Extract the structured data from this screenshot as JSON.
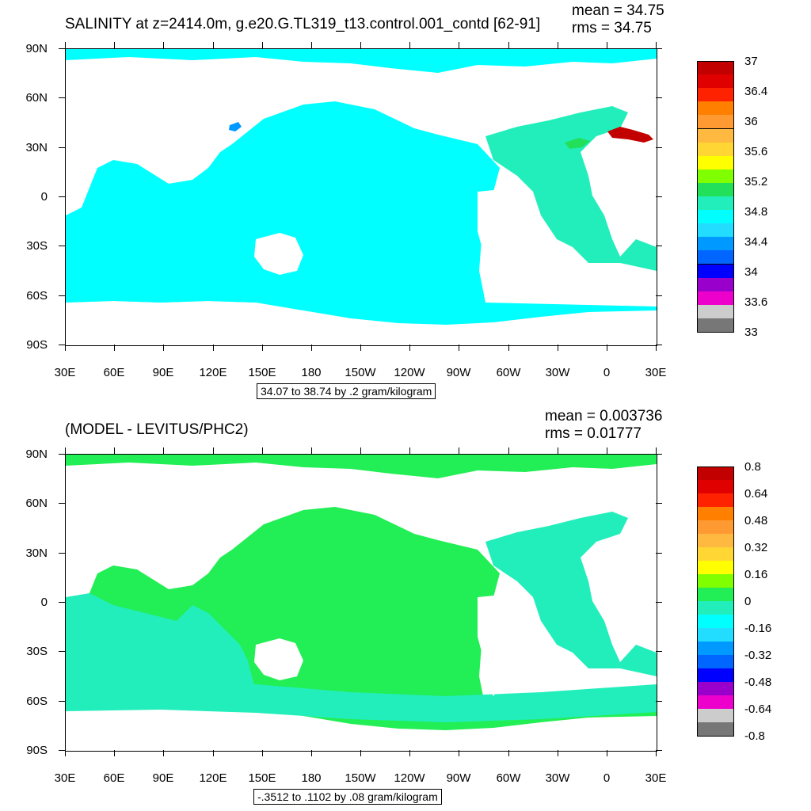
{
  "top": {
    "title": "SALINITY at z=2414.0m, g.e20.G.TL319_t13.control.001_contd [62-91]",
    "mean_text": "mean = 34.75",
    "rms_text": "rms = 34.75",
    "info_text": "34.07 to 38.74 by .2 gram/kilogram",
    "ocean_color": "#00ffff",
    "atlantic_color": "#22eebb",
    "legend": {
      "colors": [
        "#c30000",
        "#e00000",
        "#ff2200",
        "#ff7f00",
        "#ff9a33",
        "#ffb940",
        "#ffd633",
        "#ffff00",
        "#7fff00",
        "#22e05a",
        "#22eebb",
        "#00ffff",
        "#22ddff",
        "#0099ff",
        "#0066ff",
        "#0000ff",
        "#9900cc",
        "#ee00cc",
        "#cccccc",
        "#777777"
      ],
      "labels": [
        "37",
        "36.4",
        "36",
        "35.6",
        "35.2",
        "34.8",
        "34.4",
        "34",
        "33.6",
        "33"
      ]
    }
  },
  "bottom": {
    "title": "(MODEL - LEVITUS/PHC2)",
    "mean_text": "mean = 0.003736",
    "rms_text": "rms = 0.01777",
    "info_text": "-.3512 to .1102 by .08 gram/kilogram",
    "ocean_color": "#22ee55",
    "secondary_color": "#22eebb",
    "legend": {
      "colors": [
        "#c30000",
        "#e00000",
        "#ff2200",
        "#ff7f00",
        "#ff9a33",
        "#ffb940",
        "#ffd633",
        "#ffff00",
        "#7fff00",
        "#22ee55",
        "#22eebb",
        "#00ffff",
        "#22ddff",
        "#0099ff",
        "#0066ff",
        "#0000ff",
        "#9900cc",
        "#ee00cc",
        "#cccccc",
        "#777777"
      ],
      "labels": [
        "0.8",
        "0.64",
        "0.48",
        "0.32",
        "0.16",
        "0",
        "-0.16",
        "-0.32",
        "-0.48",
        "-0.64",
        "-0.8"
      ]
    }
  },
  "axes": {
    "lat_labels": [
      "90N",
      "60N",
      "30N",
      "0",
      "30S",
      "60S",
      "90S"
    ],
    "lon_labels": [
      "30E",
      "60E",
      "90E",
      "120E",
      "150E",
      "180",
      "150W",
      "120W",
      "90W",
      "60W",
      "30W",
      "0",
      "30E"
    ]
  }
}
